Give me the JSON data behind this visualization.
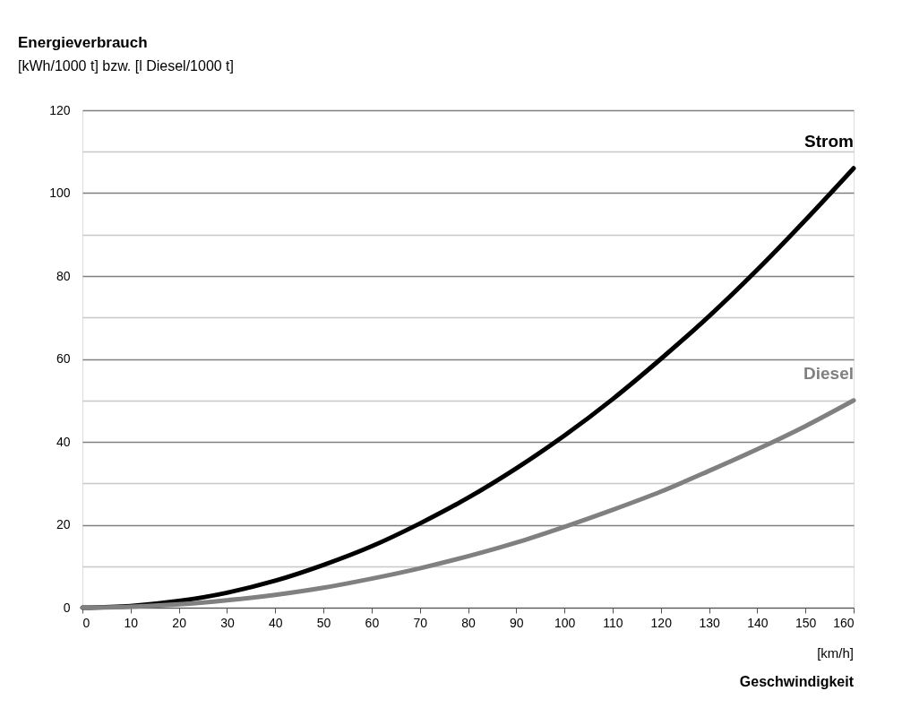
{
  "chart_data": {
    "type": "line",
    "title": "Energieverbrauch",
    "subtitle": "[kWh/1000 t] bzw. [l Diesel/1000 t]",
    "xlabel": "Geschwindigkeit",
    "annotations": [
      "[km/h]"
    ],
    "x": [
      0,
      10,
      20,
      30,
      40,
      50,
      60,
      70,
      80,
      90,
      100,
      110,
      120,
      130,
      140,
      150,
      160
    ],
    "series": [
      {
        "name": "Strom",
        "color": "#000000",
        "values": [
          0,
          0.4,
          1.6,
          3.6,
          6.5,
          10.3,
          14.8,
          20.3,
          26.5,
          33.6,
          41.5,
          50.3,
          60,
          70.3,
          81.5,
          93.5,
          106
        ]
      },
      {
        "name": "Diesel",
        "color": "#808080",
        "values": [
          0,
          0.2,
          0.8,
          1.8,
          3.1,
          4.8,
          7,
          9.5,
          12.4,
          15.7,
          19.5,
          23.6,
          28,
          33,
          38.2,
          43.8,
          50
        ]
      }
    ],
    "xlim": [
      0,
      160
    ],
    "xticks": [
      0,
      10,
      20,
      30,
      40,
      50,
      60,
      70,
      80,
      90,
      100,
      110,
      120,
      130,
      140,
      150,
      160
    ],
    "ylim": [
      0,
      120
    ],
    "yticks": [
      0,
      {
        "value": 10,
        "label": null
      },
      20,
      {
        "value": 30,
        "label": null
      },
      40,
      {
        "value": 50,
        "label": null
      },
      60,
      {
        "value": 70,
        "label": null
      },
      80,
      {
        "value": 90,
        "label": null
      },
      100,
      {
        "value": 110,
        "label": null
      },
      120
    ],
    "grid": "y",
    "legend": false,
    "marker": "none",
    "line_style": "solid"
  }
}
